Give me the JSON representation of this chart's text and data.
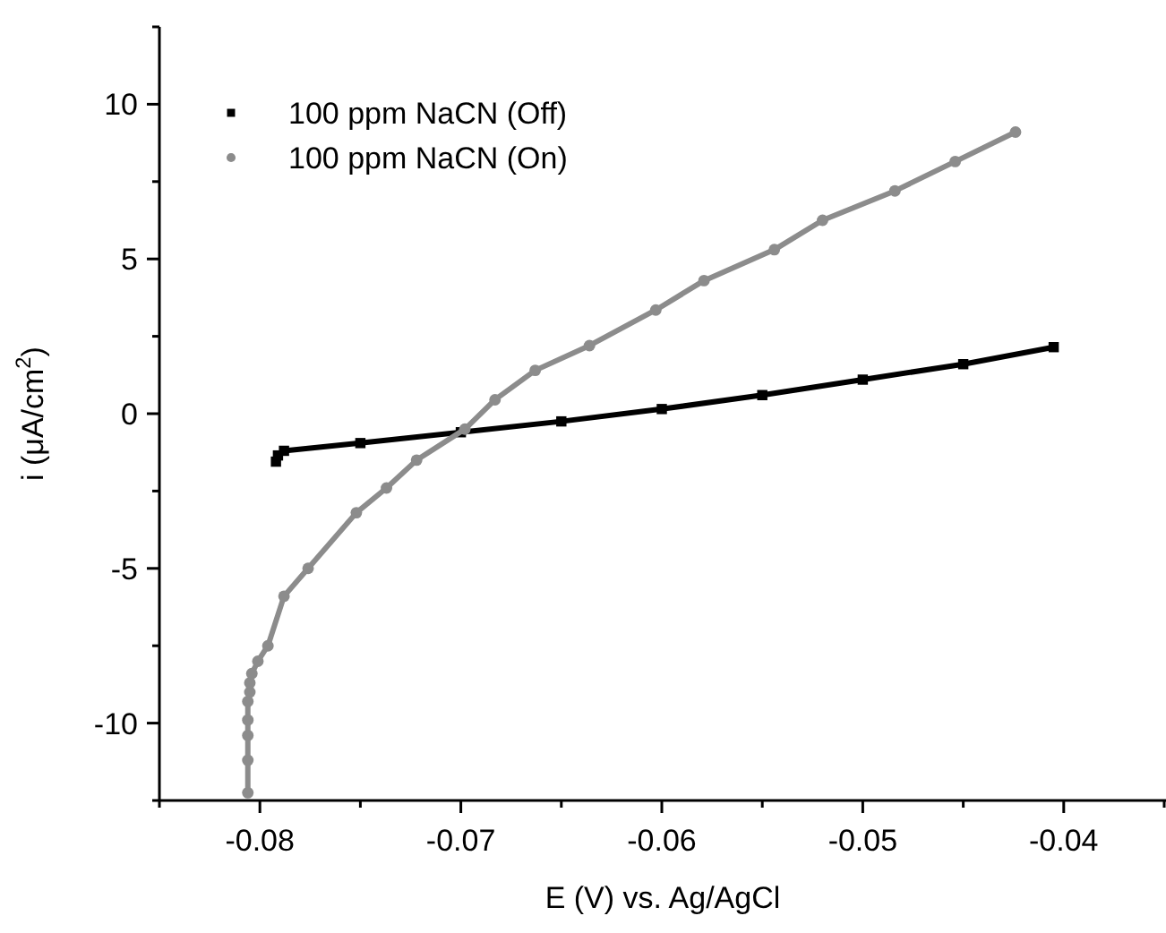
{
  "chart_data": {
    "type": "line",
    "xlabel": "E (V) vs. Ag/AgCl",
    "ylabel": "i (μA/cm$^{2}$)",
    "xlim": [
      -0.085,
      -0.035
    ],
    "ylim": [
      -12.5,
      12.5
    ],
    "xticks": [
      {
        "value": -0.085,
        "label": null
      },
      -0.08,
      {
        "value": -0.075,
        "label": null
      },
      -0.07,
      {
        "value": -0.065,
        "label": null
      },
      -0.06,
      {
        "value": -0.055,
        "label": null
      },
      -0.05,
      {
        "value": -0.045,
        "label": null
      },
      -0.04,
      {
        "value": -0.035,
        "label": null
      }
    ],
    "yticks": [
      {
        "value": -12.5,
        "label": null
      },
      -10,
      {
        "value": -7.5,
        "label": null
      },
      -5,
      {
        "value": -2.5,
        "label": null
      },
      0,
      {
        "value": 2.5,
        "label": null
      },
      5,
      {
        "value": 7.5,
        "label": null
      },
      10,
      {
        "value": 12.5,
        "label": null
      }
    ],
    "legend": "top left",
    "grid": false,
    "series": [
      {
        "name": "100 ppm NaCN (Off)",
        "color": "#000000",
        "marker": "square",
        "x": [
          -0.0792,
          -0.0791,
          -0.0788,
          -0.075,
          -0.07,
          -0.065,
          -0.06,
          -0.055,
          -0.05,
          -0.045,
          -0.0405
        ],
        "values": [
          -1.55,
          -1.35,
          -1.2,
          -0.95,
          -0.6,
          -0.25,
          0.15,
          0.6,
          1.1,
          1.6,
          2.15
        ]
      },
      {
        "name": "100 ppm NaCN (On)",
        "color": "#8c8c8c",
        "marker": "circle",
        "x": [
          -0.0806,
          -0.0806,
          -0.0806,
          -0.0806,
          -0.0806,
          -0.0805,
          -0.0805,
          -0.0804,
          -0.0801,
          -0.0796,
          -0.0788,
          -0.0776,
          -0.0752,
          -0.0737,
          -0.0722,
          -0.0698,
          -0.0683,
          -0.0663,
          -0.0636,
          -0.0603,
          -0.0579,
          -0.0544,
          -0.052,
          -0.0484,
          -0.0454,
          -0.0424
        ],
        "values": [
          -12.25,
          -11.2,
          -10.4,
          -9.9,
          -9.3,
          -9.0,
          -8.7,
          -8.4,
          -8.0,
          -7.5,
          -5.9,
          -5.0,
          -3.2,
          -2.4,
          -1.5,
          -0.5,
          0.45,
          1.4,
          2.2,
          3.35,
          4.3,
          5.3,
          6.25,
          7.2,
          8.15,
          9.1
        ]
      }
    ]
  }
}
